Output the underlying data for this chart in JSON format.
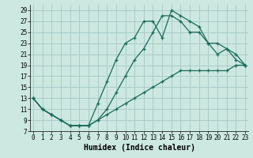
{
  "xlabel": "Humidex (Indice chaleur)",
  "bg_color": "#cce8e0",
  "grid_color": "#aacccc",
  "line_color": "#1a6b5a",
  "line1_x": [
    0,
    1,
    2,
    3,
    4,
    5,
    6,
    7,
    8,
    9,
    10,
    11,
    12,
    13,
    14,
    15,
    16,
    17,
    18,
    19,
    20,
    21,
    22,
    23
  ],
  "line1_y": [
    13,
    11,
    10,
    9,
    8,
    8,
    8,
    12,
    16,
    20,
    23,
    24,
    27,
    27,
    24,
    29,
    28,
    27,
    26,
    23,
    21,
    22,
    20,
    19
  ],
  "line2_x": [
    0,
    1,
    2,
    3,
    4,
    5,
    6,
    7,
    8,
    9,
    10,
    11,
    12,
    13,
    14,
    15,
    16,
    17,
    18,
    19,
    20,
    21,
    22,
    23
  ],
  "line2_y": [
    13,
    11,
    10,
    9,
    8,
    8,
    8,
    9,
    10,
    11,
    12,
    13,
    14,
    15,
    16,
    17,
    18,
    18,
    18,
    18,
    18,
    18,
    19,
    19
  ],
  "line3_x": [
    0,
    1,
    2,
    3,
    4,
    5,
    6,
    7,
    8,
    9,
    10,
    11,
    12,
    13,
    14,
    15,
    16,
    17,
    18,
    19,
    20,
    21,
    22,
    23
  ],
  "line3_y": [
    13,
    11,
    10,
    9,
    8,
    8,
    8,
    9,
    11,
    14,
    17,
    20,
    22,
    25,
    28,
    28,
    27,
    25,
    25,
    23,
    23,
    22,
    21,
    19
  ],
  "xlim": [
    0,
    23
  ],
  "ylim": [
    7,
    30
  ],
  "yticks": [
    7,
    9,
    11,
    13,
    15,
    17,
    19,
    21,
    23,
    25,
    27,
    29
  ],
  "xticks": [
    0,
    1,
    2,
    3,
    4,
    5,
    6,
    7,
    8,
    9,
    10,
    11,
    12,
    13,
    14,
    15,
    16,
    17,
    18,
    19,
    20,
    21,
    22,
    23
  ],
  "tick_fontsize": 5.5,
  "xlabel_fontsize": 7
}
